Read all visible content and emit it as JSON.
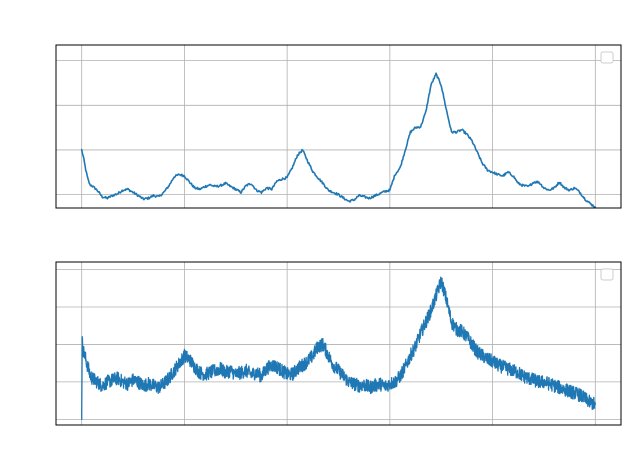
{
  "chart_data": [
    {
      "type": "line",
      "title": "",
      "xlabel": "",
      "ylabel": "",
      "grid": true,
      "legend": "top-right",
      "legend_entries": [],
      "tick_labels_visible": false,
      "xlim": [
        -0.25,
        5.25
      ],
      "ylim": [
        0.7,
        4.35
      ],
      "xticks": [
        0,
        1,
        2,
        3,
        4,
        5
      ],
      "yticks": [
        1,
        2,
        3,
        4
      ],
      "colors": {
        "series": "#1f77b4",
        "grid": "#b0b0b0",
        "frame": "#000000"
      },
      "series": [
        {
          "style": "smooth",
          "x": [
            0.0,
            0.02,
            0.04,
            0.06,
            0.08,
            0.1,
            0.15,
            0.2,
            0.25,
            0.3,
            0.35,
            0.4,
            0.45,
            0.5,
            0.55,
            0.6,
            0.65,
            0.7,
            0.75,
            0.8,
            0.85,
            0.9,
            0.95,
            1.0,
            1.05,
            1.1,
            1.15,
            1.2,
            1.25,
            1.3,
            1.35,
            1.4,
            1.45,
            1.5,
            1.55,
            1.6,
            1.65,
            1.7,
            1.75,
            1.8,
            1.85,
            1.9,
            1.95,
            2.0,
            2.05,
            2.1,
            2.15,
            2.2,
            2.25,
            2.3,
            2.35,
            2.4,
            2.45,
            2.5,
            2.55,
            2.6,
            2.65,
            2.7,
            2.75,
            2.8,
            2.85,
            2.9,
            2.95,
            3.0,
            3.05,
            3.1,
            3.15,
            3.2,
            3.25,
            3.3,
            3.35,
            3.4,
            3.45,
            3.5,
            3.55,
            3.6,
            3.65,
            3.7,
            3.75,
            3.8,
            3.85,
            3.9,
            3.95,
            4.0,
            4.05,
            4.1,
            4.15,
            4.2,
            4.25,
            4.3,
            4.35,
            4.4,
            4.45,
            4.5,
            4.55,
            4.6,
            4.65,
            4.7,
            4.75,
            4.8,
            4.85,
            4.9,
            4.95,
            5.0
          ],
          "y": [
            2.0,
            1.8,
            1.55,
            1.35,
            1.22,
            1.2,
            1.1,
            0.95,
            0.92,
            0.98,
            1.02,
            1.1,
            1.12,
            1.05,
            0.98,
            0.9,
            0.92,
            0.98,
            0.95,
            1.05,
            1.2,
            1.4,
            1.45,
            1.42,
            1.28,
            1.15,
            1.12,
            1.18,
            1.22,
            1.18,
            1.2,
            1.25,
            1.18,
            1.12,
            1.05,
            1.2,
            1.25,
            1.1,
            1.05,
            1.15,
            1.12,
            1.3,
            1.35,
            1.38,
            1.6,
            1.88,
            2.0,
            1.75,
            1.52,
            1.38,
            1.25,
            1.1,
            1.05,
            1.0,
            0.92,
            0.85,
            0.88,
            0.98,
            0.95,
            0.92,
            0.97,
            1.02,
            1.07,
            1.1,
            1.45,
            1.6,
            2.0,
            2.4,
            2.5,
            2.52,
            2.85,
            3.45,
            3.7,
            3.45,
            2.9,
            2.4,
            2.4,
            2.45,
            2.35,
            2.2,
            1.95,
            1.7,
            1.55,
            1.5,
            1.45,
            1.42,
            1.5,
            1.42,
            1.25,
            1.2,
            1.18,
            1.28,
            1.28,
            1.15,
            1.1,
            1.15,
            1.28,
            1.15,
            1.1,
            1.15,
            1.05,
            0.9,
            0.8,
            0.72
          ]
        }
      ]
    },
    {
      "type": "line",
      "title": "",
      "xlabel": "",
      "ylabel": "",
      "grid": true,
      "legend": "top-right",
      "legend_entries": [],
      "tick_labels_visible": false,
      "xlim": [
        -0.25,
        5.25
      ],
      "ylim": [
        -0.15,
        4.2
      ],
      "xticks": [
        0,
        1,
        2,
        3,
        4,
        5
      ],
      "yticks": [
        0,
        1,
        2,
        3,
        4
      ],
      "colors": {
        "series": "#1f77b4",
        "grid": "#b0b0b0",
        "frame": "#000000"
      },
      "series": [
        {
          "style": "noisy",
          "noise_amplitude": 0.18,
          "x": [
            0.0,
            0.005,
            0.01,
            0.02,
            0.04,
            0.06,
            0.08,
            0.1,
            0.15,
            0.2,
            0.25,
            0.3,
            0.35,
            0.4,
            0.45,
            0.5,
            0.55,
            0.6,
            0.65,
            0.7,
            0.75,
            0.8,
            0.85,
            0.9,
            0.95,
            1.0,
            1.05,
            1.1,
            1.15,
            1.2,
            1.25,
            1.3,
            1.35,
            1.4,
            1.45,
            1.5,
            1.55,
            1.6,
            1.65,
            1.7,
            1.75,
            1.8,
            1.85,
            1.9,
            1.95,
            2.0,
            2.05,
            2.1,
            2.15,
            2.2,
            2.25,
            2.3,
            2.35,
            2.4,
            2.45,
            2.5,
            2.55,
            2.6,
            2.65,
            2.7,
            2.75,
            2.8,
            2.85,
            2.9,
            2.95,
            3.0,
            3.05,
            3.1,
            3.15,
            3.2,
            3.25,
            3.3,
            3.35,
            3.4,
            3.45,
            3.5,
            3.55,
            3.6,
            3.65,
            3.7,
            3.75,
            3.8,
            3.85,
            3.9,
            3.95,
            4.0,
            4.05,
            4.1,
            4.15,
            4.2,
            4.25,
            4.3,
            4.35,
            4.4,
            4.45,
            4.5,
            4.55,
            4.6,
            4.65,
            4.7,
            4.75,
            4.8,
            4.85,
            4.9,
            4.95,
            5.0
          ],
          "y": [
            0.0,
            2.1,
            1.9,
            1.8,
            1.6,
            1.4,
            1.2,
            1.1,
            1.0,
            0.9,
            1.0,
            1.05,
            1.1,
            1.0,
            0.95,
            1.05,
            1.0,
            0.9,
            0.95,
            0.9,
            0.85,
            0.95,
            1.1,
            1.3,
            1.5,
            1.7,
            1.6,
            1.4,
            1.25,
            1.2,
            1.25,
            1.3,
            1.35,
            1.25,
            1.3,
            1.2,
            1.25,
            1.3,
            1.2,
            1.25,
            1.15,
            1.35,
            1.45,
            1.4,
            1.3,
            1.2,
            1.2,
            1.35,
            1.45,
            1.55,
            1.7,
            1.95,
            2.0,
            1.7,
            1.45,
            1.3,
            1.15,
            1.0,
            0.95,
            0.9,
            0.92,
            0.85,
            0.9,
            0.95,
            0.88,
            0.95,
            1.0,
            1.15,
            1.4,
            1.7,
            1.95,
            2.3,
            2.6,
            2.9,
            3.3,
            3.7,
            3.2,
            2.6,
            2.4,
            2.35,
            2.2,
            2.0,
            1.8,
            1.7,
            1.6,
            1.55,
            1.45,
            1.4,
            1.35,
            1.3,
            1.25,
            1.15,
            1.1,
            1.05,
            1.0,
            1.0,
            0.95,
            0.9,
            0.85,
            0.8,
            0.75,
            0.7,
            0.65,
            0.55,
            0.45,
            0.4
          ]
        }
      ]
    }
  ]
}
